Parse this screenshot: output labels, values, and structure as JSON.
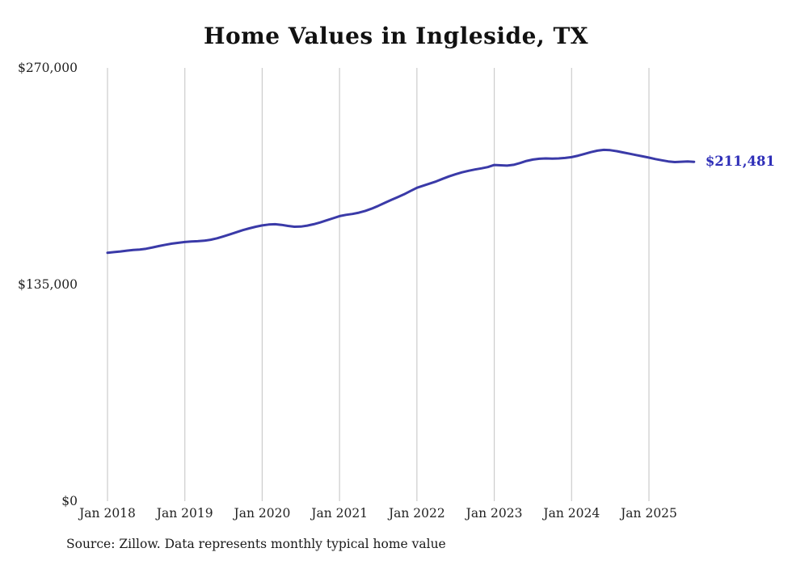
{
  "chart_data": {
    "type": "line",
    "title": "Home Values in Ingleside, TX",
    "series_name": "Monthly typical home value",
    "x_start": "Jan 2018",
    "frequency": "monthly",
    "values": [
      154800,
      155200,
      155600,
      156100,
      156500,
      156800,
      157300,
      158100,
      159000,
      159800,
      160500,
      161000,
      161500,
      161800,
      162000,
      162300,
      162900,
      163800,
      165000,
      166300,
      167600,
      168900,
      170000,
      171000,
      171800,
      172400,
      172600,
      172200,
      171500,
      171000,
      171100,
      171700,
      172600,
      173700,
      175000,
      176300,
      177600,
      178400,
      179000,
      179800,
      180900,
      182300,
      184000,
      185900,
      187700,
      189400,
      191200,
      193300,
      195300,
      196600,
      197900,
      199300,
      200900,
      202400,
      203700,
      204900,
      205900,
      206700,
      207400,
      208200,
      209500,
      209300,
      209100,
      209600,
      210700,
      212000,
      212900,
      213400,
      213600,
      213500,
      213600,
      213900,
      214400,
      215300,
      216400,
      217500,
      218400,
      218900,
      218700,
      218100,
      217300,
      216500,
      215700,
      214900,
      214100,
      213200,
      212400,
      211700,
      211300,
      211500,
      211700,
      211481
    ],
    "x_tick_labels": [
      "Jan 2018",
      "Jan 2019",
      "Jan 2020",
      "Jan 2021",
      "Jan 2022",
      "Jan 2023",
      "Jan 2024",
      "Jan 2025"
    ],
    "y_ticks": [
      {
        "label": "$0",
        "value": 0
      },
      {
        "label": "$135,000",
        "value": 135000
      },
      {
        "label": "$270,000",
        "value": 270000
      }
    ],
    "y_max": 270000,
    "end_label": "$211,481",
    "grid": "vertical-only",
    "legend": "none"
  },
  "source": "Source: Zillow. Data represents monthly typical home value",
  "colors": {
    "line": "#3a3aa8",
    "end_label": "#2e2eb8",
    "grid": "#cccccc",
    "tick_text": "#222222",
    "background": "#ffffff"
  }
}
